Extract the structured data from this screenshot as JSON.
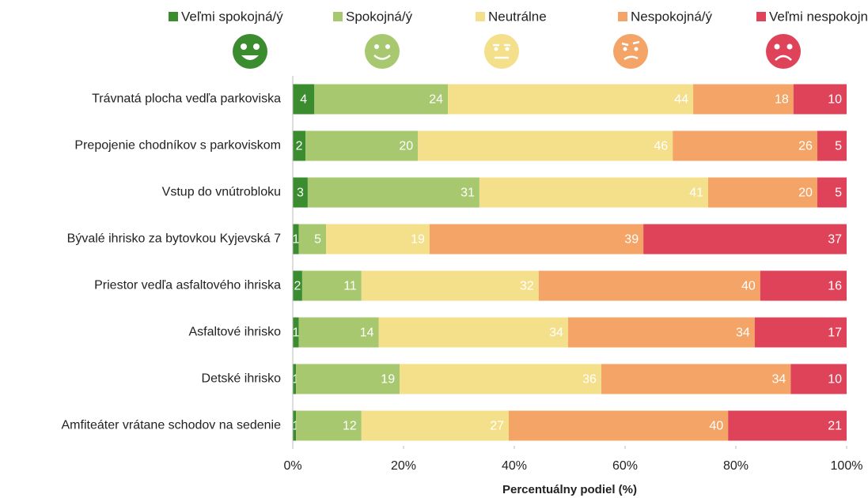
{
  "chart_data": {
    "type": "stacked-barh",
    "xlabel": "Percentuálny podiel (%)",
    "legend": "top",
    "categories": [
      "Trávnatá plocha vedľa parkoviska",
      "Prepojenie chodníkov s parkoviskom",
      "Vstup do vnútrobloku",
      "Bývalé ihrisko za bytovkou Kyjevská 7",
      "Priestor vedľa asfaltového ihriska",
      "Asfaltové ihrisko",
      "Detské ihrisko",
      "Amfiteáter vrátane schodov na sedenie"
    ],
    "series": [
      {
        "name": "Veľmi spokojná/ý",
        "color": "#3b8c2f",
        "values": [
          3.9,
          2.3,
          2.7,
          1.1,
          1.7,
          1.1,
          0.6,
          0.6
        ],
        "value_labels": [
          "4",
          "2",
          "3",
          "1",
          "2",
          "1",
          "1",
          "1"
        ]
      },
      {
        "name": "Spokojná/ý",
        "color": "#a7c86f",
        "values": [
          24.1,
          20.3,
          31,
          4.9,
          10.7,
          14.4,
          18.7,
          11.8
        ],
        "value_labels": [
          "24",
          "20",
          "31",
          "5",
          "11",
          "14",
          "19",
          "12"
        ]
      },
      {
        "name": "Neutrálne",
        "color": "#f4df8b",
        "values": [
          44.3,
          46,
          41.3,
          18.7,
          32,
          34.2,
          36.4,
          26.6
        ],
        "value_labels": [
          "44",
          "46",
          "41",
          "19",
          "32",
          "34",
          "36",
          "27"
        ]
      },
      {
        "name": "Nespokojná/ý",
        "color": "#f3a466",
        "values": [
          18.1,
          26.1,
          19.7,
          38.6,
          40,
          33.7,
          34.2,
          39.6
        ],
        "value_labels": [
          "18",
          "26",
          "20",
          "39",
          "40",
          "34",
          "34",
          "40"
        ]
      },
      {
        "name": "Veľmi nespokojná/ý",
        "color": "#df4359",
        "values": [
          9.6,
          5.3,
          5.3,
          36.7,
          15.6,
          16.6,
          10.1,
          21.4
        ],
        "value_labels": [
          "10",
          "5",
          "5",
          "37",
          "16",
          "17",
          "10",
          "21"
        ]
      }
    ],
    "xlim": [
      0,
      100
    ],
    "xticks": [
      {
        "value": 0,
        "label": "0%"
      },
      {
        "value": 20,
        "label": "20%"
      },
      {
        "value": 40,
        "label": "40%"
      },
      {
        "value": 60,
        "label": "60%"
      },
      {
        "value": 80,
        "label": "80%"
      },
      {
        "value": 100,
        "label": "100%"
      }
    ]
  }
}
